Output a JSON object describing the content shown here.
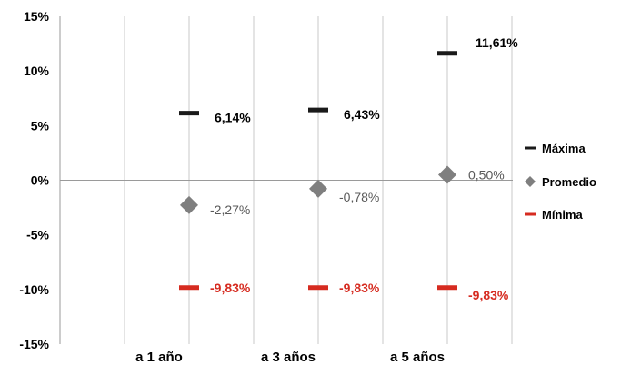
{
  "chart_data": {
    "type": "scatter",
    "categories": [
      "a 1 año",
      "a 3 años",
      "a 5 años"
    ],
    "ylim": [
      -15,
      15
    ],
    "yticks": [
      15,
      10,
      5,
      0,
      -5,
      -10,
      -15
    ],
    "ytick_labels": [
      "15%",
      "10%",
      "5%",
      "0%",
      "-5%",
      "-10%",
      "-15%"
    ],
    "grid": "vertical",
    "legend_position": "right",
    "series": [
      {
        "name": "Máxima",
        "marker": "dash",
        "color": "#1a1a1a",
        "label_color": "#000000",
        "label_bold": true,
        "values": [
          6.14,
          6.43,
          11.61
        ],
        "labels": [
          "6,14%",
          "6,43%",
          "11,61%"
        ]
      },
      {
        "name": "Promedio",
        "marker": "diamond",
        "color": "#7f7f7f",
        "label_color": "#595959",
        "label_bold": false,
        "values": [
          -2.27,
          -0.78,
          0.5
        ],
        "labels": [
          "-2,27%",
          "-0,78%",
          "0,50%"
        ]
      },
      {
        "name": "Mínima",
        "marker": "dash",
        "color": "#d62b20",
        "label_color": "#d62b20",
        "label_bold": true,
        "values": [
          -9.83,
          -9.83,
          -9.83
        ],
        "labels": [
          "-9,83%",
          "-9,83%",
          "-9,83%"
        ]
      }
    ]
  }
}
